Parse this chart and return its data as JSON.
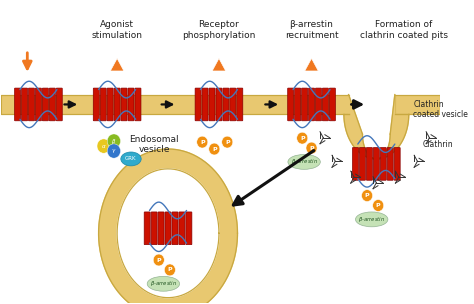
{
  "background_color": "#ffffff",
  "membrane_color": "#E8C870",
  "membrane_stroke": "#C8A840",
  "receptor_color": "#CC1100",
  "receptor_stroke": "#880000",
  "loop_color": "#4477BB",
  "agonist_color": "#F07820",
  "grk_color": "#30AACC",
  "phospho_color": "#F09010",
  "arrestin_color": "#BBDDAA",
  "g_protein_colors": [
    "#E8C820",
    "#88BB22",
    "#3377CC"
  ],
  "arrow_color": "#111111",
  "text_color": "#222222",
  "labels": [
    "Agonist\nstimulation",
    "Receptor\nphosphorylation",
    "β-arrestin\nrecruitment",
    "Formation of\nclathrin coated pits"
  ],
  "vesicle_label": "Clathrin\ncoated vesicle",
  "clathrin_label": "Clathrin",
  "endosome_label": "Endosomal\nvesicle",
  "figsize": [
    4.74,
    3.04
  ],
  "dpi": 100
}
